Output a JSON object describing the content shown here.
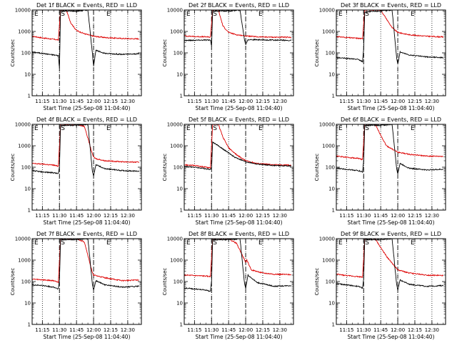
{
  "chart_data": {
    "type": "line",
    "y_scale": "log",
    "ylim": [
      1,
      10000
    ],
    "x_range": [
      "11:06:00",
      "12:42:00"
    ],
    "x_ticks": [
      "11:15",
      "11:30",
      "11:45",
      "12:00",
      "12:15",
      "12:30"
    ],
    "y_ticks": [
      "1",
      "10",
      "100",
      "1000",
      "10000"
    ],
    "xlabel": "Start Time (25-Sep-08 11:04:40)",
    "ylabel": "Counts/sec",
    "series_colors": {
      "events": "#000000",
      "lld": "#dd0000"
    },
    "panels": [
      {
        "title": "Det 1f BLACK = Events, RED = LLD",
        "flags": [
          "E",
          "S",
          "E"
        ],
        "markers": {
          "dotted": [
            "11:15",
            "11:30",
            "11:45",
            "12:00",
            "12:15",
            "12:30"
          ],
          "dashed": [
            "11:30",
            "12:00"
          ]
        },
        "events": {
          "x": [
            "11:06",
            "11:15",
            "11:25",
            "11:29",
            "11:30",
            "11:31",
            "11:36",
            "11:45",
            "11:55",
            "11:59",
            "12:00",
            "12:02",
            "12:10",
            "12:25",
            "12:40"
          ],
          "y": [
            110,
            95,
            80,
            75,
            20,
            9000,
            9000,
            9000,
            10000,
            90,
            25,
            130,
            95,
            85,
            90
          ]
        },
        "lld": {
          "x": [
            "11:06",
            "11:15",
            "11:25",
            "11:29",
            "11:31",
            "11:36",
            "11:40",
            "11:45",
            "11:52",
            "12:00",
            "12:10",
            "12:25",
            "12:40"
          ],
          "y": [
            600,
            500,
            430,
            400,
            10000,
            10000,
            2500,
            1100,
            780,
            600,
            520,
            470,
            450
          ]
        }
      },
      {
        "title": "Det 2f BLACK = Events, RED = LLD",
        "flags": [
          "E",
          "S",
          "E"
        ],
        "markers": {
          "dotted": [
            "11:15",
            "11:30",
            "11:45",
            "12:00",
            "12:15",
            "12:30"
          ],
          "dashed": [
            "11:30",
            "12:00"
          ]
        },
        "events": {
          "x": [
            "11:06",
            "11:15",
            "11:25",
            "11:29",
            "11:30",
            "11:31",
            "11:45",
            "11:55",
            "11:59",
            "12:00",
            "12:02",
            "12:15",
            "12:30",
            "12:40"
          ],
          "y": [
            380,
            390,
            400,
            390,
            200,
            9000,
            9000,
            10000,
            400,
            250,
            420,
            400,
            390,
            380
          ]
        },
        "lld": {
          "x": [
            "11:06",
            "11:15",
            "11:25",
            "11:29",
            "11:31",
            "11:36",
            "11:40",
            "11:45",
            "11:52",
            "12:00",
            "12:10",
            "12:25",
            "12:40"
          ],
          "y": [
            620,
            580,
            560,
            540,
            10000,
            10000,
            1800,
            900,
            700,
            620,
            560,
            540,
            530
          ]
        }
      },
      {
        "title": "Det 3f BLACK = Events, RED = LLD",
        "flags": [
          "E",
          "S",
          "E"
        ],
        "markers": {
          "dotted": [
            "11:15",
            "11:30",
            "11:45",
            "12:00",
            "12:15",
            "12:30"
          ],
          "dashed": [
            "11:30",
            "12:00"
          ]
        },
        "events": {
          "x": [
            "11:06",
            "11:15",
            "11:25",
            "11:29",
            "11:30",
            "11:31",
            "11:45",
            "11:55",
            "11:59",
            "12:00",
            "12:02",
            "12:10",
            "12:25",
            "12:40"
          ],
          "y": [
            60,
            55,
            50,
            40,
            150,
            8000,
            9000,
            10000,
            60,
            30,
            110,
            80,
            65,
            60
          ]
        },
        "lld": {
          "x": [
            "11:06",
            "11:15",
            "11:25",
            "11:29",
            "11:31",
            "11:36",
            "11:45",
            "11:55",
            "12:00",
            "12:10",
            "12:25",
            "12:40"
          ],
          "y": [
            580,
            520,
            480,
            460,
            10000,
            10000,
            10000,
            1500,
            900,
            700,
            600,
            550
          ]
        }
      },
      {
        "title": "Det 4f BLACK = Events, RED = LLD",
        "flags": [
          "E",
          "S",
          "E"
        ],
        "markers": {
          "dotted": [
            "11:15",
            "11:30",
            "11:45",
            "12:00",
            "12:15",
            "12:30"
          ],
          "dashed": [
            "11:30",
            "12:00"
          ]
        },
        "events": {
          "x": [
            "11:06",
            "11:15",
            "11:25",
            "11:29",
            "11:30",
            "11:31",
            "11:45",
            "11:55",
            "11:59",
            "12:00",
            "12:02",
            "12:10",
            "12:25",
            "12:40"
          ],
          "y": [
            70,
            60,
            55,
            50,
            100,
            9000,
            9000,
            10000,
            60,
            40,
            130,
            85,
            70,
            65
          ]
        },
        "lld": {
          "x": [
            "11:06",
            "11:15",
            "11:25",
            "11:29",
            "11:31",
            "11:45",
            "11:52",
            "11:59",
            "12:00",
            "12:02",
            "12:10",
            "12:25",
            "12:40"
          ],
          "y": [
            150,
            140,
            125,
            110,
            10000,
            10000,
            8000,
            400,
            300,
            250,
            200,
            180,
            170
          ]
        }
      },
      {
        "title": "Det 5f BLACK = Events, RED = LLD",
        "flags": [
          "E",
          "S",
          "E"
        ],
        "markers": {
          "dotted": [
            "11:15",
            "11:30",
            "11:45",
            "12:00",
            "12:15",
            "12:30"
          ],
          "dashed": [
            "11:30",
            "12:00"
          ]
        },
        "events": {
          "x": [
            "11:06",
            "11:15",
            "11:25",
            "11:29",
            "11:30",
            "11:31",
            "11:36",
            "11:42",
            "11:50",
            "12:00",
            "12:10",
            "12:25",
            "12:40"
          ],
          "y": [
            110,
            100,
            85,
            80,
            90,
            1500,
            1000,
            600,
            300,
            180,
            140,
            120,
            115
          ]
        },
        "lld": {
          "x": [
            "11:06",
            "11:15",
            "11:25",
            "11:29",
            "11:31",
            "11:36",
            "11:40",
            "11:45",
            "11:52",
            "12:00",
            "12:10",
            "12:25",
            "12:40"
          ],
          "y": [
            130,
            120,
            100,
            95,
            10000,
            10000,
            2500,
            800,
            380,
            200,
            150,
            130,
            125
          ]
        }
      },
      {
        "title": "Det 6f BLACK = Events, RED = LLD",
        "flags": [
          "E",
          "S",
          "E"
        ],
        "markers": {
          "dotted": [
            "11:15",
            "11:30",
            "11:45",
            "12:00",
            "12:15",
            "12:30"
          ],
          "dashed": [
            "11:30",
            "12:00"
          ]
        },
        "events": {
          "x": [
            "11:06",
            "11:15",
            "11:25",
            "11:29",
            "11:30",
            "11:31",
            "11:45",
            "11:55",
            "11:59",
            "12:00",
            "12:02",
            "12:10",
            "12:25",
            "12:40"
          ],
          "y": [
            90,
            80,
            70,
            60,
            180,
            9000,
            9000,
            10000,
            90,
            50,
            150,
            90,
            75,
            80
          ]
        },
        "lld": {
          "x": [
            "11:06",
            "11:15",
            "11:25",
            "11:29",
            "11:31",
            "11:40",
            "11:50",
            "12:00",
            "12:10",
            "12:25",
            "12:40"
          ],
          "y": [
            330,
            290,
            260,
            230,
            10000,
            10000,
            1000,
            500,
            400,
            330,
            320
          ]
        }
      },
      {
        "title": "Det 7f BLACK = Events, RED = LLD",
        "flags": [
          "E",
          "S",
          "E"
        ],
        "markers": {
          "dotted": [
            "11:15",
            "11:30",
            "11:45",
            "12:00",
            "12:15",
            "12:30"
          ],
          "dashed": [
            "11:30",
            "12:00"
          ]
        },
        "events": {
          "x": [
            "11:06",
            "11:15",
            "11:25",
            "11:29",
            "11:30",
            "11:31",
            "11:45",
            "11:55",
            "11:59",
            "12:00",
            "12:02",
            "12:10",
            "12:25",
            "12:40"
          ],
          "y": [
            70,
            65,
            55,
            45,
            120,
            9000,
            9000,
            10000,
            70,
            40,
            110,
            70,
            55,
            60
          ]
        },
        "lld": {
          "x": [
            "11:06",
            "11:15",
            "11:25",
            "11:29",
            "11:31",
            "11:45",
            "11:52",
            "11:59",
            "12:00",
            "12:10",
            "12:25",
            "12:40"
          ],
          "y": [
            130,
            120,
            110,
            95,
            10000,
            10000,
            7000,
            250,
            200,
            150,
            110,
            120
          ]
        }
      },
      {
        "title": "Det 8f BLACK = Events, RED = LLD",
        "flags": [
          "E",
          "S",
          "E"
        ],
        "markers": {
          "dotted": [
            "11:15",
            "11:30",
            "11:45",
            "12:00",
            "12:15",
            "12:30"
          ],
          "dashed": [
            "11:30",
            "12:00"
          ]
        },
        "events": {
          "x": [
            "11:06",
            "11:15",
            "11:25",
            "11:29",
            "11:30",
            "11:31",
            "11:45",
            "11:55",
            "11:59",
            "12:00",
            "12:02",
            "12:10",
            "12:25",
            "12:40"
          ],
          "y": [
            50,
            45,
            40,
            35,
            100,
            9000,
            9000,
            10000,
            80,
            50,
            200,
            90,
            60,
            65
          ]
        },
        "lld": {
          "x": [
            "11:06",
            "11:15",
            "11:25",
            "11:29",
            "11:31",
            "11:45",
            "11:52",
            "12:00",
            "12:01",
            "12:05",
            "12:15",
            "12:25",
            "12:40"
          ],
          "y": [
            200,
            190,
            180,
            170,
            10000,
            10000,
            6000,
            800,
            1000,
            350,
            250,
            220,
            210
          ]
        }
      },
      {
        "title": "Det 9f BLACK = Events, RED = LLD",
        "flags": [
          "E",
          "S",
          "E"
        ],
        "markers": {
          "dotted": [
            "11:15",
            "11:30",
            "11:45",
            "12:00",
            "12:15",
            "12:30"
          ],
          "dashed": [
            "11:30",
            "12:00"
          ]
        },
        "events": {
          "x": [
            "11:06",
            "11:15",
            "11:25",
            "11:29",
            "11:30",
            "11:31",
            "11:45",
            "11:55",
            "11:59",
            "12:00",
            "12:02",
            "12:10",
            "12:25",
            "12:40"
          ],
          "y": [
            80,
            70,
            60,
            50,
            130,
            9000,
            9000,
            10000,
            70,
            40,
            120,
            75,
            60,
            65
          ]
        },
        "lld": {
          "x": [
            "11:06",
            "11:15",
            "11:25",
            "11:29",
            "11:31",
            "11:40",
            "11:50",
            "12:00",
            "12:10",
            "12:25",
            "12:40"
          ],
          "y": [
            220,
            190,
            170,
            160,
            10000,
            10000,
            1500,
            350,
            250,
            200,
            190
          ]
        }
      }
    ]
  }
}
